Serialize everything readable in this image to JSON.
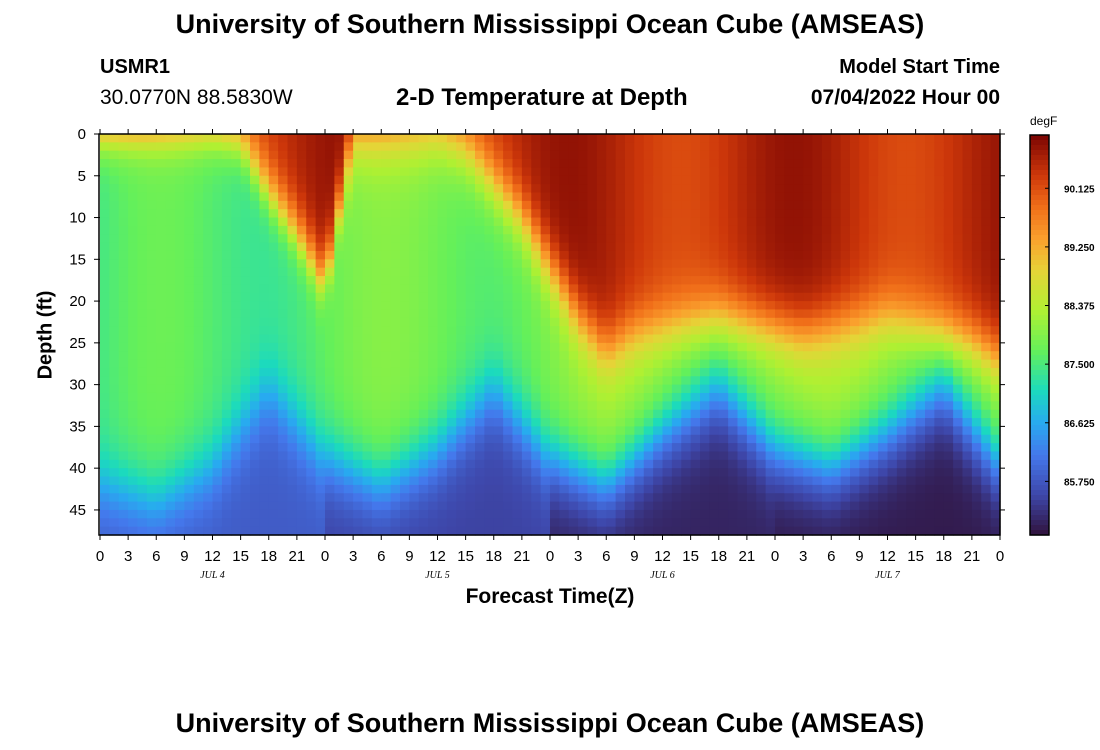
{
  "header": {
    "title": "University of Southern Mississippi Ocean Cube (AMSEAS)",
    "station_id": "USMR1",
    "coords": "30.0770N  88.5830W",
    "chart_title": "2-D Temperature at Depth",
    "start_label": "Model Start Time",
    "start_value": "07/04/2022 Hour 00"
  },
  "footer": {
    "title": "University of Southern Mississippi Ocean Cube (AMSEAS)"
  },
  "chart_data": {
    "type": "heatmap",
    "title": "2-D Temperature at Depth",
    "xlabel": "Forecast Time(Z)",
    "ylabel": "Depth (ft)",
    "x_range_hours": [
      0,
      96
    ],
    "y_range_ft": [
      0,
      48
    ],
    "x_tick_labels": [
      "0",
      "3",
      "6",
      "9",
      "12",
      "15",
      "18",
      "21",
      "0",
      "3",
      "6",
      "9",
      "12",
      "15",
      "18",
      "21",
      "0",
      "3",
      "6",
      "9",
      "12",
      "15",
      "18",
      "21",
      "0",
      "3",
      "6",
      "9",
      "12",
      "15",
      "18",
      "21",
      "0"
    ],
    "y_ticks": [
      0,
      5,
      10,
      15,
      20,
      25,
      30,
      35,
      40,
      45
    ],
    "day_labels": [
      {
        "label": "JUL 4",
        "hour": 12
      },
      {
        "label": "JUL 5",
        "hour": 36
      },
      {
        "label": "JUL 6",
        "hour": 60
      },
      {
        "label": "JUL 7",
        "hour": 84
      }
    ],
    "colorbar": {
      "units": "degF",
      "tick_labels": [
        "90.125",
        "89.250",
        "88.375",
        "87.500",
        "86.625",
        "85.750"
      ],
      "tick_values": [
        90.125,
        89.25,
        88.375,
        87.5,
        86.625,
        85.75
      ],
      "min": 84.95,
      "max": 90.92
    },
    "field_description": {
      "thermocline_center_ft": [
        [
          0,
          42
        ],
        [
          6,
          44
        ],
        [
          12,
          40
        ],
        [
          18,
          31
        ],
        [
          24,
          39
        ],
        [
          30,
          42
        ],
        [
          36,
          38
        ],
        [
          42,
          31
        ],
        [
          48,
          39
        ],
        [
          54,
          42
        ],
        [
          60,
          36
        ],
        [
          66,
          31
        ],
        [
          72,
          38
        ],
        [
          78,
          40
        ],
        [
          84,
          36
        ],
        [
          90,
          31
        ],
        [
          96,
          40
        ]
      ],
      "surface_mixed_layer_bottom_ft": [
        [
          0,
          0
        ],
        [
          12,
          0
        ],
        [
          15,
          1
        ],
        [
          18,
          7
        ],
        [
          21,
          12
        ],
        [
          24,
          18
        ],
        [
          27,
          0
        ],
        [
          36,
          0
        ],
        [
          39,
          2
        ],
        [
          45,
          10
        ],
        [
          51,
          22
        ],
        [
          54,
          26
        ],
        [
          57,
          24
        ],
        [
          66,
          22
        ],
        [
          75,
          24
        ],
        [
          84,
          22
        ],
        [
          93,
          25
        ],
        [
          96,
          27
        ]
      ]
    }
  }
}
